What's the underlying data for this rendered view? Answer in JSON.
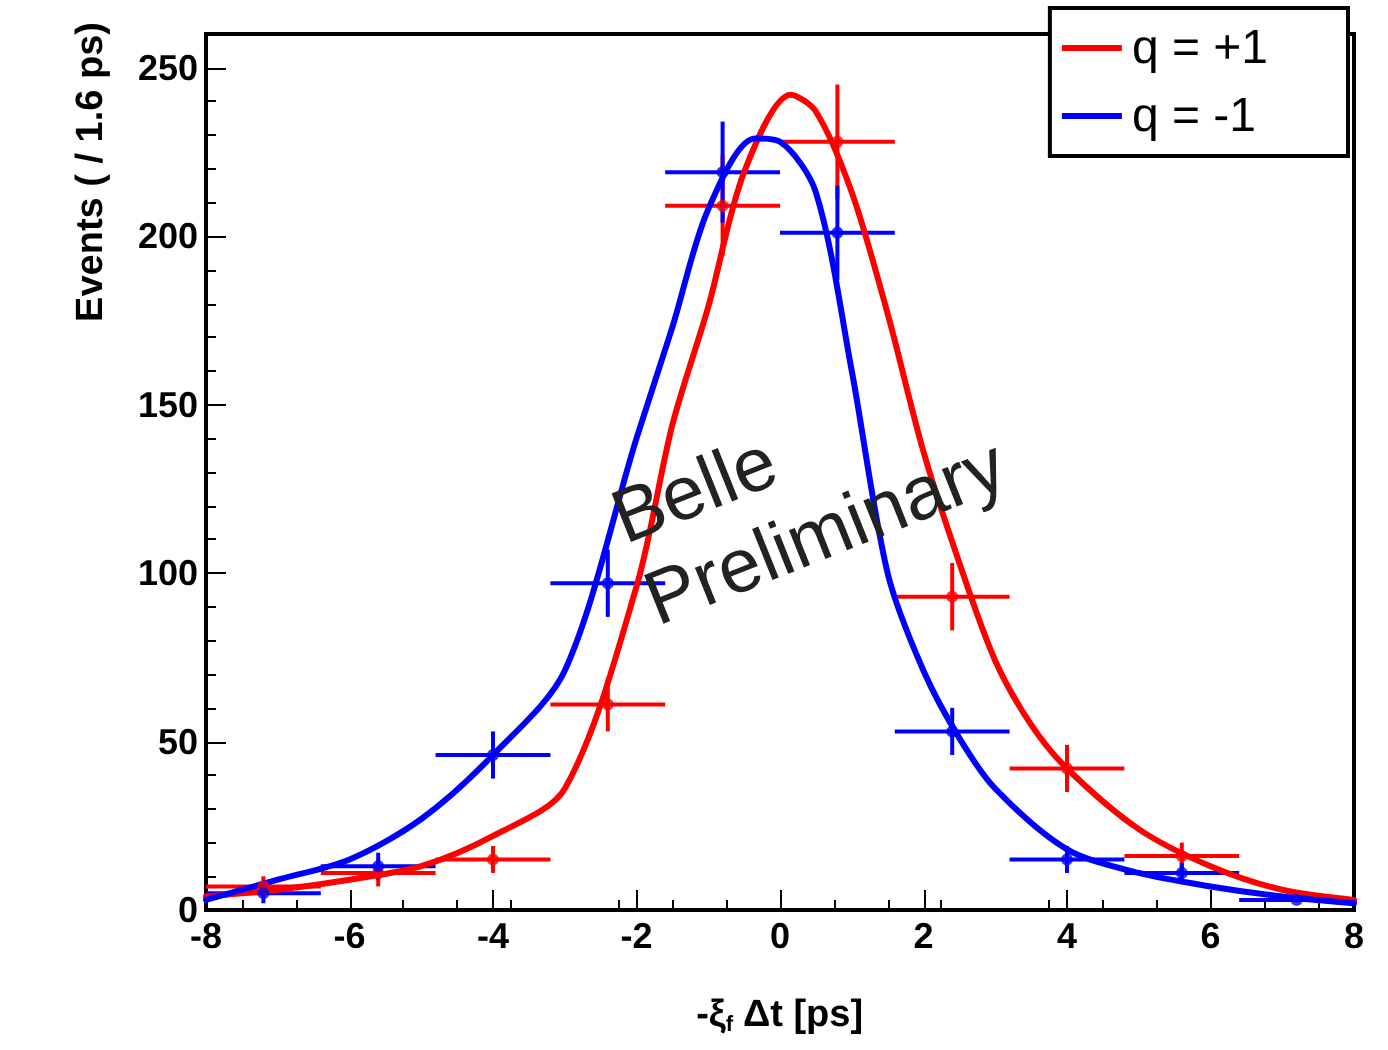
{
  "chart_data": {
    "type": "scatter",
    "xlabel": "-ξ$_{f}$ Δt [ps]",
    "ylabel": "Events ( / 1.6 ps)",
    "xlim": [
      -8,
      8
    ],
    "xticks": [
      -8,
      -6,
      -4,
      -2,
      0,
      2,
      4,
      6,
      8
    ],
    "ylim": [
      0,
      260
    ],
    "yticks": [
      0,
      50,
      100,
      150,
      200,
      250
    ],
    "grid": false,
    "legend": "top right",
    "marker": "circle",
    "annotations": [
      "Belle Preliminary"
    ],
    "series": [
      {
        "color": "#ff0000",
        "x": [
          -7.2,
          -5.6,
          -4,
          -2.4,
          -0.8,
          0.8,
          2.4,
          4,
          5.6
        ],
        "values": [
          7,
          11,
          15,
          61,
          209,
          228,
          93,
          42,
          16
        ],
        "errors": [
          3,
          4,
          4,
          8,
          15,
          17,
          10,
          7,
          4
        ],
        "xerrors": [
          0.8,
          0.8,
          0.8,
          0.8,
          0.8,
          0.8,
          0.8,
          0.8,
          0.8
        ]
      },
      {
        "color": "#0000ff",
        "x": [
          -7.2,
          -5.6,
          -4,
          -2.4,
          -0.8,
          0.8,
          2.4,
          4,
          5.6,
          7.2
        ],
        "values": [
          5,
          13,
          46,
          97,
          219,
          201,
          53,
          15,
          11,
          3
        ],
        "errors": [
          3,
          4,
          7,
          10,
          15,
          14,
          7,
          4,
          3,
          null
        ],
        "xerrors": [
          0.8,
          0.8,
          0.8,
          0.8,
          0.8,
          0.8,
          0.8,
          0.8,
          0.8,
          0.8
        ]
      },
      {
        "type": "line",
        "name": "q = +1",
        "color": "#ff0000",
        "marker": "none",
        "x": [
          -8,
          -7,
          -6,
          -5,
          -4,
          -3,
          -2,
          -1.5,
          -1,
          -0.5,
          0.15,
          0.5,
          1,
          1.5,
          2,
          2.5,
          3,
          3.5,
          4,
          5,
          6,
          7,
          8
        ],
        "values": [
          4,
          6,
          9,
          13,
          22,
          36,
          96,
          144,
          179,
          219,
          242,
          237,
          213,
          177,
          136,
          103,
          74,
          55,
          42,
          24,
          13,
          6,
          3
        ]
      },
      {
        "type": "line",
        "name": "q = -1",
        "color": "#0000ff",
        "marker": "none",
        "x": [
          -8,
          -7,
          -6,
          -5,
          -4,
          -3,
          -2,
          -1.5,
          -1,
          -0.35,
          0,
          0.5,
          1,
          1.5,
          2,
          2.5,
          3,
          4,
          5,
          6,
          7,
          8
        ],
        "values": [
          3,
          9,
          15,
          27,
          46,
          71,
          140,
          173,
          208,
          229,
          228,
          213,
          160,
          100,
          71,
          51,
          36,
          18,
          11,
          7,
          4,
          2
        ]
      }
    ]
  }
}
